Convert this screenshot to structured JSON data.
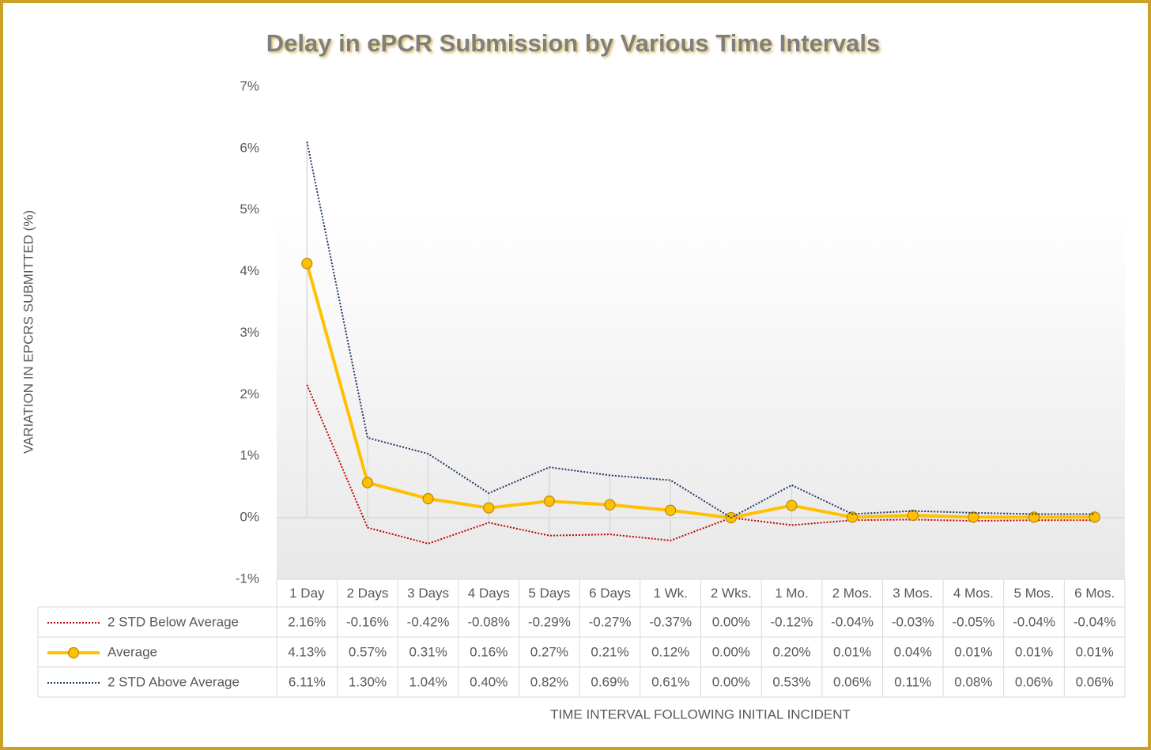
{
  "chart_data": {
    "type": "line",
    "title": "Delay in ePCR Submission by Various Time Intervals",
    "ylabel": "VARIATION IN EPCRS SUBMITTED (%)",
    "xlabel": "TIME INTERVAL FOLLOWING INITIAL INCIDENT",
    "categories": [
      "1 Day",
      "2 Days",
      "3 Days",
      "4 Days",
      "5 Days",
      "6 Days",
      "1 Wk.",
      "2 Wks.",
      "1 Mo.",
      "2 Mos.",
      "3 Mos.",
      "4 Mos.",
      "5 Mos.",
      "6 Mos."
    ],
    "ylim": [
      -1,
      7
    ],
    "yticks": [
      {
        "value": -1,
        "label": "-1%"
      },
      {
        "value": 0,
        "label": "0%"
      },
      {
        "value": 1,
        "label": "1%"
      },
      {
        "value": 2,
        "label": "2%"
      },
      {
        "value": 3,
        "label": "3%"
      },
      {
        "value": 4,
        "label": "4%"
      },
      {
        "value": 5,
        "label": "5%"
      },
      {
        "value": 6,
        "label": "6%"
      },
      {
        "value": 7,
        "label": "7%"
      }
    ],
    "grid": false,
    "series": [
      {
        "name": "2 STD Below Average",
        "color": "#c00000",
        "style": "dotted",
        "values": [
          2.16,
          -0.16,
          -0.42,
          -0.08,
          -0.29,
          -0.27,
          -0.37,
          0.0,
          -0.12,
          -0.04,
          -0.03,
          -0.05,
          -0.04,
          -0.04
        ],
        "value_labels": [
          "2.16%",
          "-0.16%",
          "-0.42%",
          "-0.08%",
          "-0.29%",
          "-0.27%",
          "-0.37%",
          "0.00%",
          "-0.12%",
          "-0.04%",
          "-0.03%",
          "-0.05%",
          "-0.04%",
          "-0.04%"
        ]
      },
      {
        "name": "Average",
        "color": "#ffc000",
        "style": "solid",
        "markers": true,
        "values": [
          4.13,
          0.57,
          0.31,
          0.16,
          0.27,
          0.21,
          0.12,
          0.0,
          0.2,
          0.01,
          0.04,
          0.01,
          0.01,
          0.01
        ],
        "value_labels": [
          "4.13%",
          "0.57%",
          "0.31%",
          "0.16%",
          "0.27%",
          "0.21%",
          "0.12%",
          "0.00%",
          "0.20%",
          "0.01%",
          "0.04%",
          "0.01%",
          "0.01%",
          "0.01%"
        ]
      },
      {
        "name": "2 STD Above Average",
        "color": "#1f3864",
        "style": "dotted",
        "values": [
          6.11,
          1.3,
          1.04,
          0.4,
          0.82,
          0.69,
          0.61,
          0.0,
          0.53,
          0.06,
          0.11,
          0.08,
          0.06,
          0.06
        ],
        "value_labels": [
          "6.11%",
          "1.30%",
          "1.04%",
          "0.40%",
          "0.82%",
          "0.69%",
          "0.61%",
          "0.00%",
          "0.53%",
          "0.06%",
          "0.11%",
          "0.08%",
          "0.06%",
          "0.06%"
        ]
      }
    ]
  }
}
